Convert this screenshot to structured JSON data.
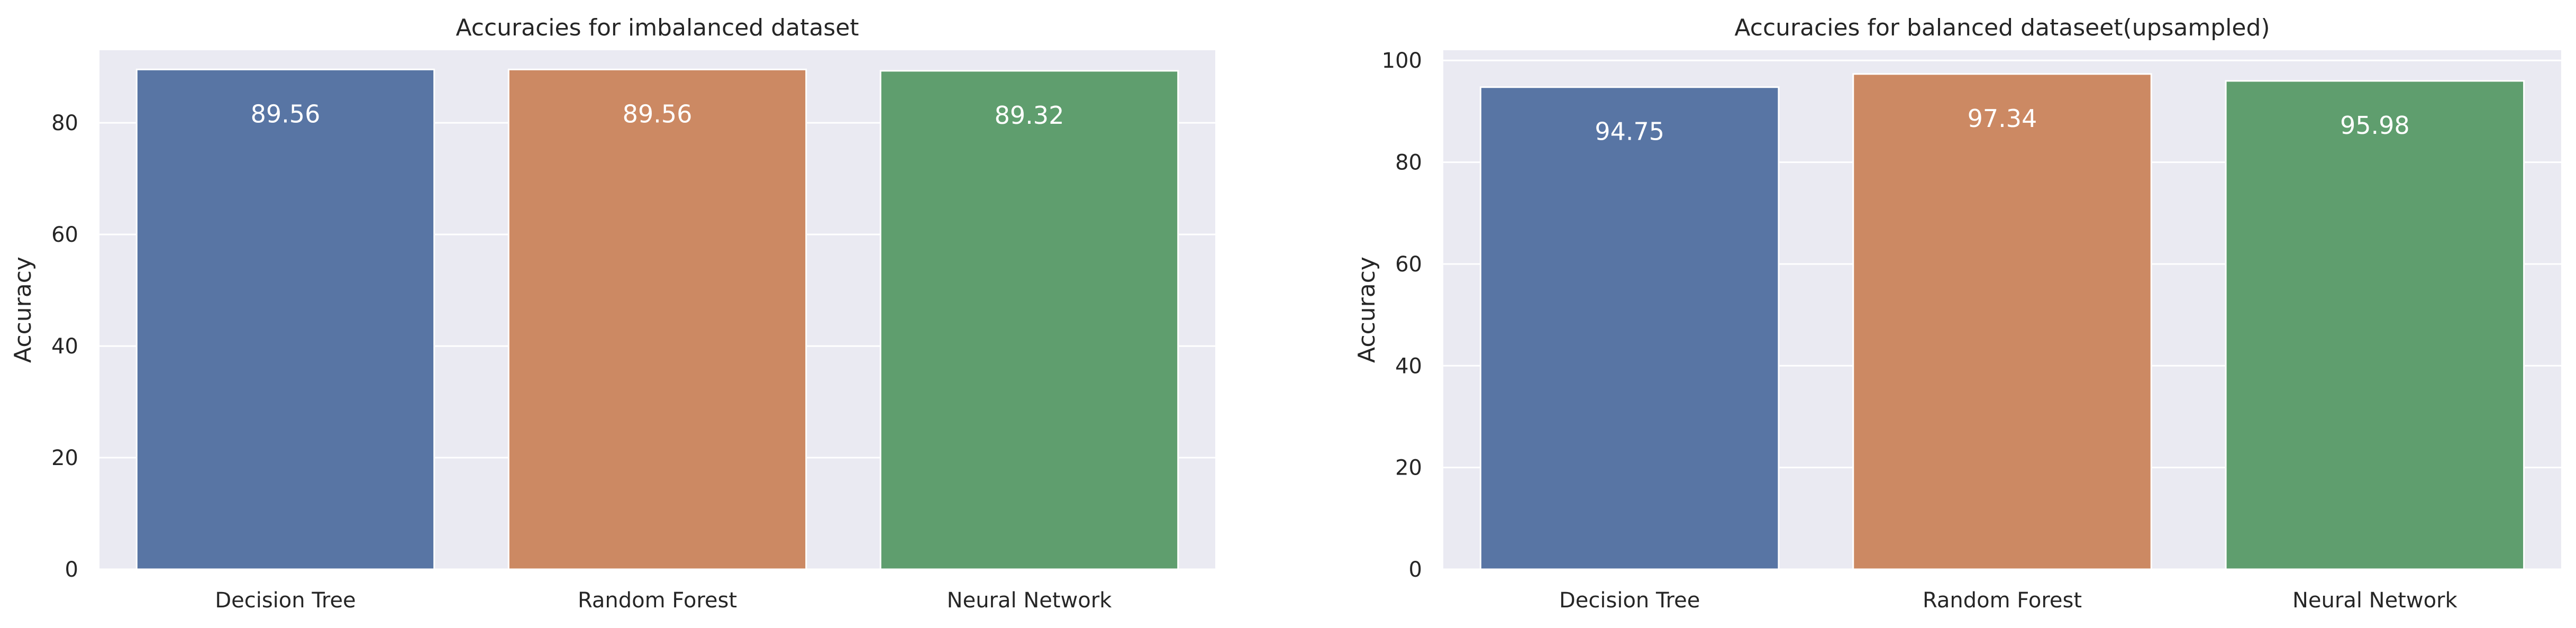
{
  "chart_data": [
    {
      "type": "bar",
      "title": "Accuracies for imbalanced dataset",
      "xlabel": "",
      "ylabel": "Accuracy",
      "categories": [
        "Decision Tree",
        "Random Forest",
        "Neural Network"
      ],
      "values": [
        89.56,
        89.56,
        89.32
      ],
      "value_labels": [
        "89.56",
        "89.56",
        "89.32"
      ],
      "colors": [
        "#5875a4",
        "#cc8963",
        "#5f9e6e"
      ],
      "ylim": [
        0,
        93
      ],
      "yticks": [
        0,
        20,
        40,
        60,
        80
      ],
      "grid": true,
      "background": "#eaeaf2"
    },
    {
      "type": "bar",
      "title": "Accuracies for balanced dataseet(upsampled)",
      "xlabel": "",
      "ylabel": "Accuracy",
      "categories": [
        "Decision Tree",
        "Random Forest",
        "Neural Network"
      ],
      "values": [
        94.75,
        97.34,
        95.98
      ],
      "value_labels": [
        "94.75",
        "97.34",
        "95.98"
      ],
      "colors": [
        "#5875a4",
        "#cc8963",
        "#5f9e6e"
      ],
      "ylim": [
        0,
        102
      ],
      "yticks": [
        0,
        20,
        40,
        60,
        80,
        100
      ],
      "grid": true,
      "background": "#eaeaf2"
    }
  ]
}
